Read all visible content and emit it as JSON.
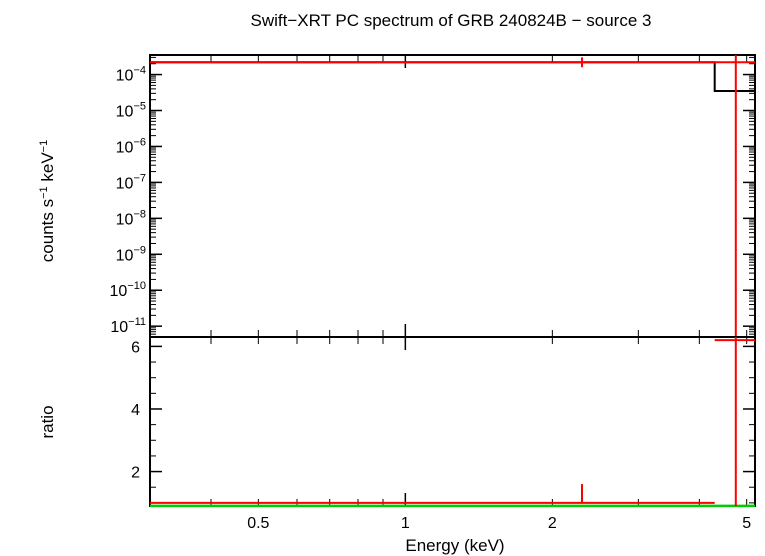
{
  "chart_data": [
    {
      "type": "line",
      "panel": "spectrum",
      "title": "Swift−XRT PC spectrum of GRB 240824B − source 3",
      "ylabel_main": "counts s",
      "ylabel_sup1": "−1",
      "ylabel_mid": " keV",
      "ylabel_sup2": "−1",
      "yscale": "log",
      "xscale": "log",
      "ylim": [
        5e-12,
        0.00035
      ],
      "yticks": [
        {
          "base": "10",
          "exp": "−4",
          "value": 0.0001
        },
        {
          "base": "10",
          "exp": "−5",
          "value": 1e-05
        },
        {
          "base": "10",
          "exp": "−6",
          "value": 1e-06
        },
        {
          "base": "10",
          "exp": "−7",
          "value": 1e-07
        },
        {
          "base": "10",
          "exp": "−8",
          "value": 1e-08
        },
        {
          "base": "10",
          "exp": "−9",
          "value": 1e-09
        },
        {
          "base": "10",
          "exp": "−10",
          "value": 1e-10
        },
        {
          "base": "10",
          "exp": "−11",
          "value": 1e-11
        }
      ],
      "series": [
        {
          "color": "#000000",
          "kind": "model-step",
          "x": [
            0.3,
            4.3,
            4.3,
            5.2
          ],
          "y": [
            0.00022,
            0.00022,
            3.5e-05,
            3.5e-05
          ]
        },
        {
          "color": "#ff0000",
          "kind": "data-errorbar",
          "bins": [
            {
              "xlo": 0.3,
              "xhi": 5.2,
              "xc": 2.3,
              "y": 0.00022,
              "ylo": 0.00016,
              "yhi": 0.0003
            },
            {
              "xlo": 4.75,
              "xhi": 4.75,
              "xc": 4.75,
              "y": 0.00022,
              "ylo": 5e-12,
              "yhi": 0.00035
            }
          ]
        }
      ]
    },
    {
      "type": "line",
      "panel": "ratio",
      "xlabel": "Energy (keV)",
      "ylabel": "ratio",
      "xscale": "log",
      "xlim": [
        0.3,
        5.2
      ],
      "ylim": [
        0.9,
        6.3
      ],
      "xticks": [
        {
          "value": 0.5,
          "label": "0.5"
        },
        {
          "value": 1,
          "label": "1"
        },
        {
          "value": 2,
          "label": "2"
        },
        {
          "value": 5,
          "label": "5"
        }
      ],
      "yticks": [
        {
          "value": 2,
          "label": "2"
        },
        {
          "value": 4,
          "label": "4"
        },
        {
          "value": 6,
          "label": "6"
        }
      ],
      "reference_line": {
        "y": 1,
        "color": "#00cc00"
      },
      "series": [
        {
          "color": "#ff0000",
          "kind": "data-errorbar",
          "bins": [
            {
              "xlo": 0.3,
              "xhi": 4.3,
              "xc": 2.3,
              "y": 1.0,
              "ylo": 1.0,
              "yhi": 1.6
            },
            {
              "xlo": 4.3,
              "xhi": 5.2,
              "xc": 4.75,
              "y": 6.2,
              "ylo": 0.9,
              "yhi": 6.3
            }
          ]
        }
      ]
    }
  ]
}
